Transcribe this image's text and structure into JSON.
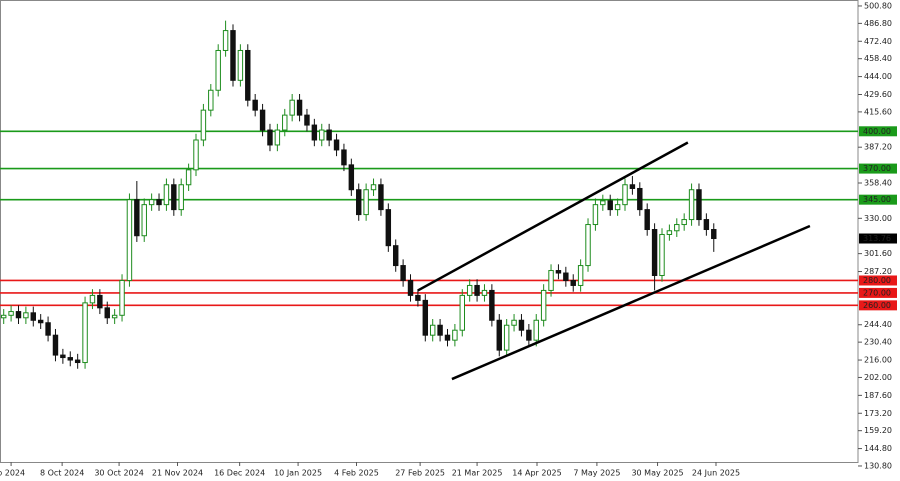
{
  "chart_data": {
    "type": "candlestick",
    "up_color": "#1e8c1e",
    "down_color": "#111111",
    "xlim": [
      -0.5,
      115.5
    ],
    "ylim": [
      134,
      505.6
    ],
    "xticks": [
      {
        "value": 1,
        "label": "p 2024"
      },
      {
        "value": 7.9,
        "label": "8 Oct 2024"
      },
      {
        "value": 15.6,
        "label": "30 Oct 2024"
      },
      {
        "value": 23.5,
        "label": "21 Nov 2024"
      },
      {
        "value": 31.9,
        "label": "16 Dec 2024"
      },
      {
        "value": 39.8,
        "label": "10 Jan 2025"
      },
      {
        "value": 47.7,
        "label": "4 Feb 2025"
      },
      {
        "value": 56.3,
        "label": "27 Feb 2025"
      },
      {
        "value": 64,
        "label": "21 Mar 2025"
      },
      {
        "value": 72.1,
        "label": "14 Apr 2025"
      },
      {
        "value": 80.2,
        "label": "7 May 2025"
      },
      {
        "value": 88.4,
        "label": "30 May 2025"
      },
      {
        "value": 96.3,
        "label": "24 Jun 2025"
      }
    ],
    "yticks": [
      {
        "value": 500.8,
        "label": "500.80"
      },
      {
        "value": 486.8,
        "label": "486.80"
      },
      {
        "value": 472.4,
        "label": "472.40"
      },
      {
        "value": 458.4,
        "label": "458.40"
      },
      {
        "value": 444,
        "label": "444.00"
      },
      {
        "value": 429.6,
        "label": "429.60"
      },
      {
        "value": 415.6,
        "label": "415.60"
      },
      {
        "value": 387.2,
        "label": "387.20"
      },
      {
        "value": 358.4,
        "label": "358.40"
      },
      {
        "value": 330,
        "label": "330.00"
      },
      {
        "value": 301.6,
        "label": "301.60"
      },
      {
        "value": 287.2,
        "label": "287.20"
      },
      {
        "value": 244.4,
        "label": "244.40"
      },
      {
        "value": 230.4,
        "label": "230.40"
      },
      {
        "value": 216,
        "label": "216.00"
      },
      {
        "value": 202,
        "label": "202.00"
      },
      {
        "value": 187.6,
        "label": "187.60"
      },
      {
        "value": 173.2,
        "label": "173.20"
      },
      {
        "value": 159.2,
        "label": "159.20"
      },
      {
        "value": 144.8,
        "label": "144.80"
      },
      {
        "value": 130.8,
        "label": "130.80"
      }
    ],
    "open": [
      250,
      252,
      255,
      250,
      254,
      248,
      246,
      236,
      220,
      218,
      216,
      214,
      262,
      268,
      258,
      250,
      252,
      280,
      345,
      316,
      341,
      345,
      341,
      357,
      337,
      357,
      369,
      393,
      417,
      433,
      465,
      481,
      441,
      465,
      425,
      417,
      401,
      389,
      401,
      413,
      425,
      413,
      405,
      393,
      401,
      393,
      385,
      373,
      353,
      333,
      353,
      357,
      337,
      308,
      292,
      280,
      268,
      264,
      236,
      244,
      236,
      232,
      240,
      268,
      276,
      268,
      272,
      248,
      224,
      244,
      248,
      240,
      232,
      248,
      272,
      288,
      286,
      280,
      276,
      292,
      325,
      341,
      344,
      337,
      341,
      357,
      354,
      337,
      321,
      284,
      317,
      320,
      325,
      329,
      353,
      329,
      321
    ],
    "high": [
      257,
      260,
      260,
      259,
      259,
      253,
      251,
      241,
      225,
      223,
      221,
      267,
      273,
      273,
      263,
      257,
      285,
      350,
      360,
      346,
      350,
      350,
      362,
      362,
      362,
      374,
      398,
      422,
      438,
      470,
      489,
      486,
      470,
      470,
      430,
      422,
      406,
      406,
      418,
      430,
      430,
      418,
      410,
      406,
      406,
      398,
      390,
      378,
      358,
      358,
      362,
      362,
      342,
      313,
      297,
      285,
      273,
      269,
      249,
      249,
      241,
      245,
      273,
      281,
      281,
      277,
      277,
      253,
      249,
      253,
      253,
      245,
      253,
      277,
      293,
      293,
      291,
      285,
      297,
      330,
      346,
      349,
      349,
      346,
      362,
      364,
      359,
      342,
      326,
      322,
      325,
      330,
      334,
      358,
      358,
      334,
      326
    ],
    "low": [
      245,
      247,
      245,
      245,
      243,
      241,
      231,
      215,
      213,
      211,
      209,
      209,
      257,
      253,
      245,
      245,
      247,
      275,
      311,
      311,
      336,
      336,
      336,
      332,
      332,
      352,
      364,
      388,
      412,
      428,
      460,
      436,
      436,
      420,
      412,
      396,
      384,
      384,
      396,
      408,
      408,
      400,
      388,
      388,
      388,
      380,
      368,
      348,
      328,
      328,
      348,
      332,
      303,
      287,
      275,
      263,
      259,
      231,
      231,
      231,
      227,
      227,
      235,
      263,
      263,
      263,
      243,
      219,
      219,
      239,
      235,
      227,
      227,
      243,
      267,
      281,
      275,
      271,
      271,
      287,
      320,
      336,
      332,
      332,
      336,
      349,
      332,
      316,
      272,
      279,
      312,
      315,
      320,
      324,
      324,
      316,
      303
    ],
    "close": [
      252,
      255,
      250,
      254,
      248,
      246,
      236,
      220,
      218,
      216,
      214,
      262,
      268,
      258,
      250,
      252,
      280,
      345,
      316,
      341,
      345,
      341,
      357,
      337,
      357,
      369,
      393,
      417,
      433,
      465,
      481,
      441,
      465,
      425,
      417,
      401,
      389,
      401,
      413,
      425,
      413,
      405,
      393,
      401,
      393,
      385,
      373,
      353,
      333,
      353,
      357,
      337,
      308,
      292,
      280,
      268,
      264,
      236,
      244,
      236,
      232,
      240,
      268,
      276,
      268,
      272,
      248,
      224,
      244,
      248,
      240,
      232,
      248,
      272,
      288,
      286,
      280,
      276,
      292,
      325,
      341,
      344,
      337,
      341,
      357,
      354,
      337,
      321,
      284,
      317,
      320,
      325,
      329,
      353,
      329,
      321,
      313.76
    ],
    "levels": [
      {
        "value": 400,
        "label": "400.00",
        "color": "#1a9a1a"
      },
      {
        "value": 370,
        "label": "370.00",
        "color": "#1a9a1a"
      },
      {
        "value": 345,
        "label": "345.00",
        "color": "#1a9a1a"
      },
      {
        "value": 280,
        "label": "280.00",
        "color": "#e81818"
      },
      {
        "value": 270,
        "label": "270.00",
        "color": "#e81818"
      },
      {
        "value": 260,
        "label": "260.00",
        "color": "#e81818"
      }
    ],
    "trendlines": [
      {
        "x": [
          56,
          92.5
        ],
        "y": [
          272,
          391
        ]
      },
      {
        "x": [
          60.6,
          109
        ],
        "y": [
          200.7,
          323.8
        ]
      }
    ],
    "last_price": 313.76
  }
}
